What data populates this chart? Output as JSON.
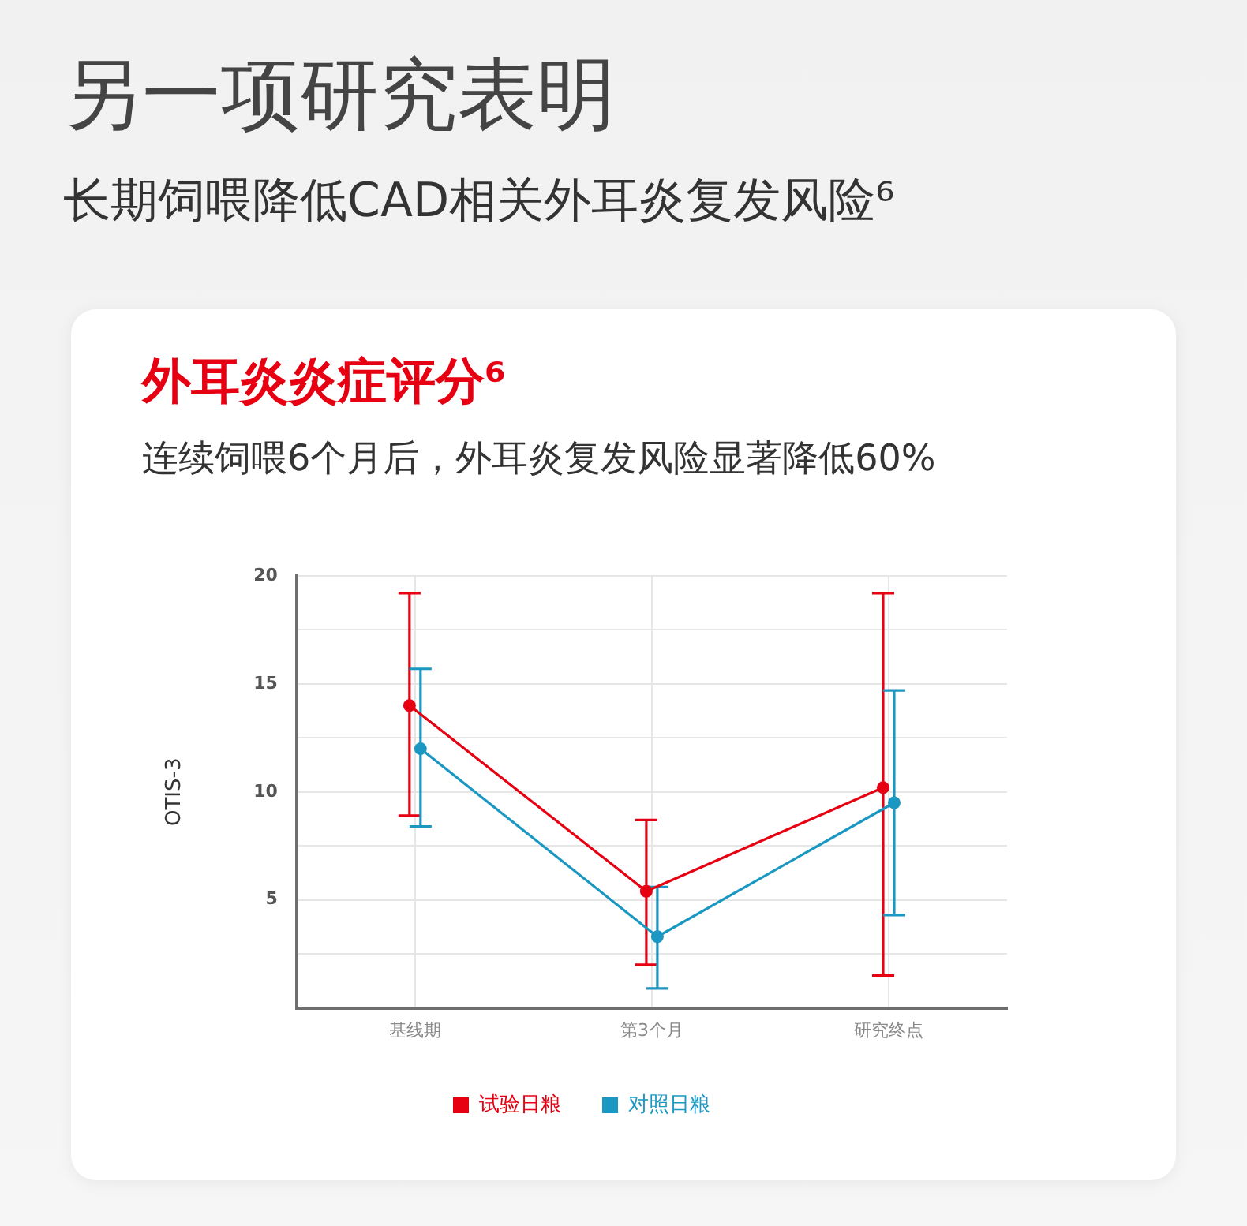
{
  "chart_data": {
    "type": "line",
    "title": "外耳炎炎症评分⁶",
    "subtitle": "连续饲喂6个月后，外耳炎复发风险显著降低60%",
    "annotations": [
      "另一项研究表明",
      "长期饲喂降低CAD相关外耳炎复发风险⁶"
    ],
    "ylabel": "OTIS-3",
    "categories": [
      "基线期",
      "第3个月",
      "研究终点"
    ],
    "series": [
      {
        "name": "试验日粮",
        "color": "#e60012",
        "values": [
          14.0,
          5.4,
          10.2
        ],
        "errors": [
          [
            8.9,
            19.2
          ],
          [
            2.0,
            8.7
          ],
          [
            1.5,
            19.2
          ]
        ]
      },
      {
        "name": "对照日粮",
        "color": "#1a98c2",
        "values": [
          12.0,
          3.3,
          9.5
        ],
        "errors": [
          [
            8.4,
            15.7
          ],
          [
            0.9,
            5.6
          ],
          [
            4.3,
            14.7
          ]
        ]
      }
    ],
    "ylim": [
      0,
      20
    ],
    "yticks": [
      {
        "value": 0,
        "label": null
      },
      {
        "value": 2.5,
        "label": null
      },
      5,
      {
        "value": 7.5,
        "label": null
      },
      10,
      {
        "value": 12.5,
        "label": null
      },
      15,
      {
        "value": 17.5,
        "label": null
      },
      20
    ],
    "grid": true,
    "legend": "bottom",
    "marker": "circle",
    "line_style": "solid"
  }
}
